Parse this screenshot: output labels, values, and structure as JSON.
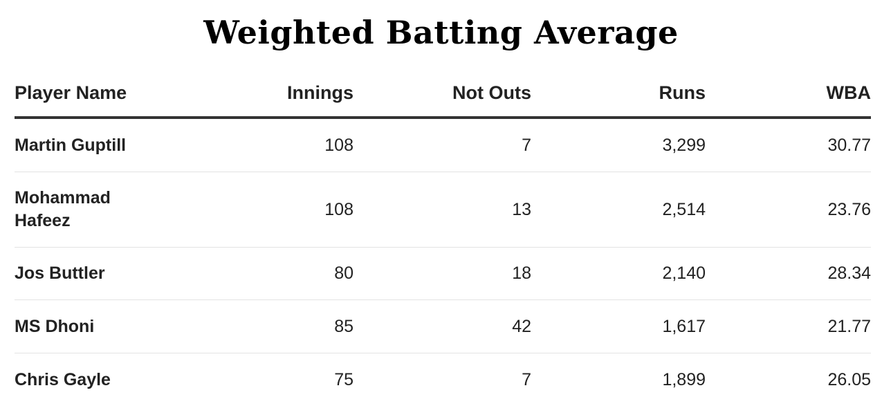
{
  "chart_data": {
    "type": "table",
    "title": "Weighted Batting Average",
    "columns": [
      "Player Name",
      "Innings",
      "Not Outs",
      "Runs",
      "WBA"
    ],
    "rows": [
      {
        "player": "Martin Guptill",
        "innings": "108",
        "not_outs": "7",
        "runs": "3,299",
        "wba": "30.77"
      },
      {
        "player": "Mohammad Hafeez",
        "innings": "108",
        "not_outs": "13",
        "runs": "2,514",
        "wba": "23.76"
      },
      {
        "player": "Jos Buttler",
        "innings": "80",
        "not_outs": "18",
        "runs": "2,140",
        "wba": "28.34"
      },
      {
        "player": "MS Dhoni",
        "innings": "85",
        "not_outs": "42",
        "runs": "1,617",
        "wba": "21.77"
      },
      {
        "player": "Chris Gayle",
        "innings": "75",
        "not_outs": "7",
        "runs": "1,899",
        "wba": "26.05"
      }
    ]
  }
}
